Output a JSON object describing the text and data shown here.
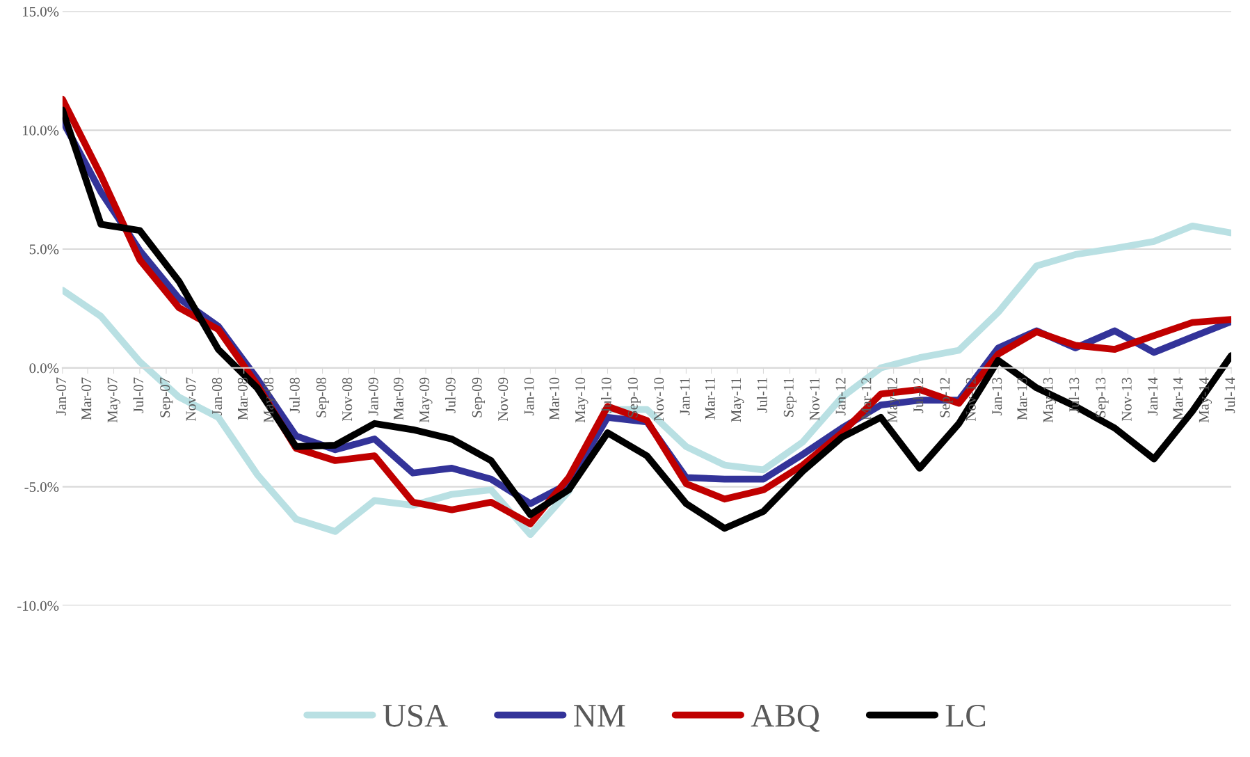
{
  "chart_data": {
    "type": "line",
    "x": [
      "2007-01",
      "2007-04",
      "2007-07",
      "2007-10",
      "2008-01",
      "2008-04",
      "2008-07",
      "2008-10",
      "2009-01",
      "2009-04",
      "2009-07",
      "2009-10",
      "2010-01",
      "2010-04",
      "2010-07",
      "2010-10",
      "2011-01",
      "2011-04",
      "2011-07",
      "2011-10",
      "2012-01",
      "2012-04",
      "2012-07",
      "2012-10",
      "2013-01",
      "2013-04",
      "2013-07",
      "2013-10",
      "2014-01",
      "2014-04",
      "2014-07"
    ],
    "series": [
      {
        "name": "USA",
        "color": "#b9e0e3",
        "values": [
          3.27,
          2.17,
          0.26,
          -1.23,
          -2.08,
          -4.48,
          -6.36,
          -6.88,
          -5.58,
          -5.78,
          -5.32,
          -5.13,
          -7.01,
          -5.19,
          -1.75,
          -1.75,
          -3.31,
          -4.09,
          -4.29,
          -3.12,
          -1.23,
          0.0,
          0.43,
          0.74,
          2.34,
          4.29,
          4.77,
          5.03,
          5.32,
          5.97,
          5.68
        ]
      },
      {
        "name": "NM",
        "color": "#333399",
        "values": [
          10.4,
          7.4,
          4.94,
          2.92,
          1.75,
          -0.45,
          -2.86,
          -3.44,
          -2.99,
          -4.42,
          -4.22,
          -4.68,
          -5.71,
          -4.87,
          -2.08,
          -2.27,
          -4.61,
          -4.68,
          -4.68,
          -3.64,
          -2.53,
          -1.56,
          -1.36,
          -1.36,
          0.84,
          1.56,
          0.84,
          1.56,
          0.65,
          1.3,
          1.95
        ]
      },
      {
        "name": "ABQ",
        "color": "#c00000",
        "values": [
          11.3,
          8.1,
          4.55,
          2.53,
          1.62,
          -0.71,
          -3.38,
          -3.9,
          -3.7,
          -5.65,
          -5.97,
          -5.65,
          -6.56,
          -4.61,
          -1.62,
          -2.21,
          -4.87,
          -5.52,
          -5.13,
          -4.09,
          -2.73,
          -1.1,
          -0.91,
          -1.49,
          0.58,
          1.52,
          0.95,
          0.78,
          1.36,
          1.91,
          2.04
        ]
      },
      {
        "name": "LC",
        "color": "#000000",
        "values": [
          10.85,
          6.04,
          5.78,
          3.64,
          0.78,
          -0.84,
          -3.31,
          -3.25,
          -2.34,
          -2.6,
          -2.99,
          -3.9,
          -6.17,
          -5.13,
          -2.73,
          -3.7,
          -5.71,
          -6.75,
          -6.04,
          -4.35,
          -2.92,
          -2.08,
          -4.22,
          -2.34,
          0.32,
          -0.84,
          -1.62,
          -2.53,
          -3.83,
          -1.82,
          0.52
        ]
      }
    ],
    "ylim": [
      -10,
      15
    ],
    "yticks": [
      {
        "value": -10,
        "label": "-10.0%"
      },
      {
        "value": -5,
        "label": "-5.0%"
      },
      {
        "value": 0,
        "label": "0.0%"
      },
      {
        "value": 5,
        "label": "5.0%"
      },
      {
        "value": 10,
        "label": "10.0%"
      },
      {
        "value": 15,
        "label": "15.0%"
      }
    ],
    "xlim": [
      "2007-01",
      "2014-07"
    ],
    "xticks": [
      {
        "value": "2007-01",
        "label": "Jan-07"
      },
      {
        "value": "2007-03",
        "label": "Mar-07"
      },
      {
        "value": "2007-05",
        "label": "May-07"
      },
      {
        "value": "2007-07",
        "label": "Jul-07"
      },
      {
        "value": "2007-09",
        "label": "Sep-07"
      },
      {
        "value": "2007-11",
        "label": "Nov-07"
      },
      {
        "value": "2008-01",
        "label": "Jan-08"
      },
      {
        "value": "2008-03",
        "label": "Mar-08"
      },
      {
        "value": "2008-05",
        "label": "May-08"
      },
      {
        "value": "2008-07",
        "label": "Jul-08"
      },
      {
        "value": "2008-09",
        "label": "Sep-08"
      },
      {
        "value": "2008-11",
        "label": "Nov-08"
      },
      {
        "value": "2009-01",
        "label": "Jan-09"
      },
      {
        "value": "2009-03",
        "label": "Mar-09"
      },
      {
        "value": "2009-05",
        "label": "May-09"
      },
      {
        "value": "2009-07",
        "label": "Jul-09"
      },
      {
        "value": "2009-09",
        "label": "Sep-09"
      },
      {
        "value": "2009-11",
        "label": "Nov-09"
      },
      {
        "value": "2010-01",
        "label": "Jan-10"
      },
      {
        "value": "2010-03",
        "label": "Mar-10"
      },
      {
        "value": "2010-05",
        "label": "May-10"
      },
      {
        "value": "2010-07",
        "label": "Jul-10"
      },
      {
        "value": "2010-09",
        "label": "Sep-10"
      },
      {
        "value": "2010-11",
        "label": "Nov-10"
      },
      {
        "value": "2011-01",
        "label": "Jan-11"
      },
      {
        "value": "2011-03",
        "label": "Mar-11"
      },
      {
        "value": "2011-05",
        "label": "May-11"
      },
      {
        "value": "2011-07",
        "label": "Jul-11"
      },
      {
        "value": "2011-09",
        "label": "Sep-11"
      },
      {
        "value": "2011-11",
        "label": "Nov-11"
      },
      {
        "value": "2012-01",
        "label": "Jan-12"
      },
      {
        "value": "2012-03",
        "label": "Mar-12"
      },
      {
        "value": "2012-05",
        "label": "May-12"
      },
      {
        "value": "2012-07",
        "label": "Jul-12"
      },
      {
        "value": "2012-09",
        "label": "Sep-12"
      },
      {
        "value": "2012-11",
        "label": "Nov-12"
      },
      {
        "value": "2013-01",
        "label": "Jan-13"
      },
      {
        "value": "2013-03",
        "label": "Mar-13"
      },
      {
        "value": "2013-05",
        "label": "May-13"
      },
      {
        "value": "2013-07",
        "label": "Jul-13"
      },
      {
        "value": "2013-09",
        "label": "Sep-13"
      },
      {
        "value": "2013-11",
        "label": "Nov-13"
      },
      {
        "value": "2014-01",
        "label": "Jan-14"
      },
      {
        "value": "2014-03",
        "label": "Mar-14"
      },
      {
        "value": "2014-05",
        "label": "May-14"
      },
      {
        "value": "2014-07",
        "label": "Jul-14"
      }
    ],
    "grid": "y",
    "legend": "bottom",
    "line_style": "solid",
    "marker": "none"
  }
}
